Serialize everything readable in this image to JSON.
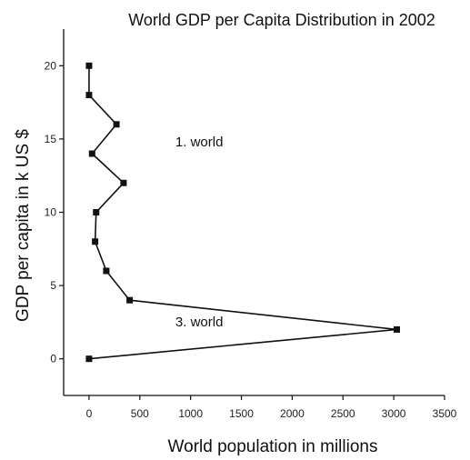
{
  "chart_data": {
    "type": "line",
    "title": "World GDP per Capita Distribution in 2002",
    "xlabel": "World population in millions",
    "ylabel": "GDP per capita in k US $",
    "xlim": [
      -250,
      3500
    ],
    "ylim": [
      -2.5,
      22.5
    ],
    "x_ticks": [
      0,
      500,
      1000,
      1500,
      2000,
      2500,
      3000,
      3500
    ],
    "y_ticks": [
      0,
      5,
      10,
      15,
      20
    ],
    "grid": false,
    "series": [
      {
        "points": [
          {
            "x": 0,
            "y": 20
          },
          {
            "x": 0,
            "y": 18
          },
          {
            "x": 270,
            "y": 16
          },
          {
            "x": 30,
            "y": 14
          },
          {
            "x": 340,
            "y": 12
          },
          {
            "x": 70,
            "y": 10
          },
          {
            "x": 60,
            "y": 8
          },
          {
            "x": 170,
            "y": 6
          },
          {
            "x": 400,
            "y": 4
          },
          {
            "x": 3030,
            "y": 2
          },
          {
            "x": 0,
            "y": 0
          }
        ]
      }
    ],
    "annotations": [
      {
        "text": "1. world",
        "x": 850,
        "y": 14.5
      },
      {
        "text": "3. world",
        "x": 850,
        "y": 2.2
      }
    ]
  }
}
